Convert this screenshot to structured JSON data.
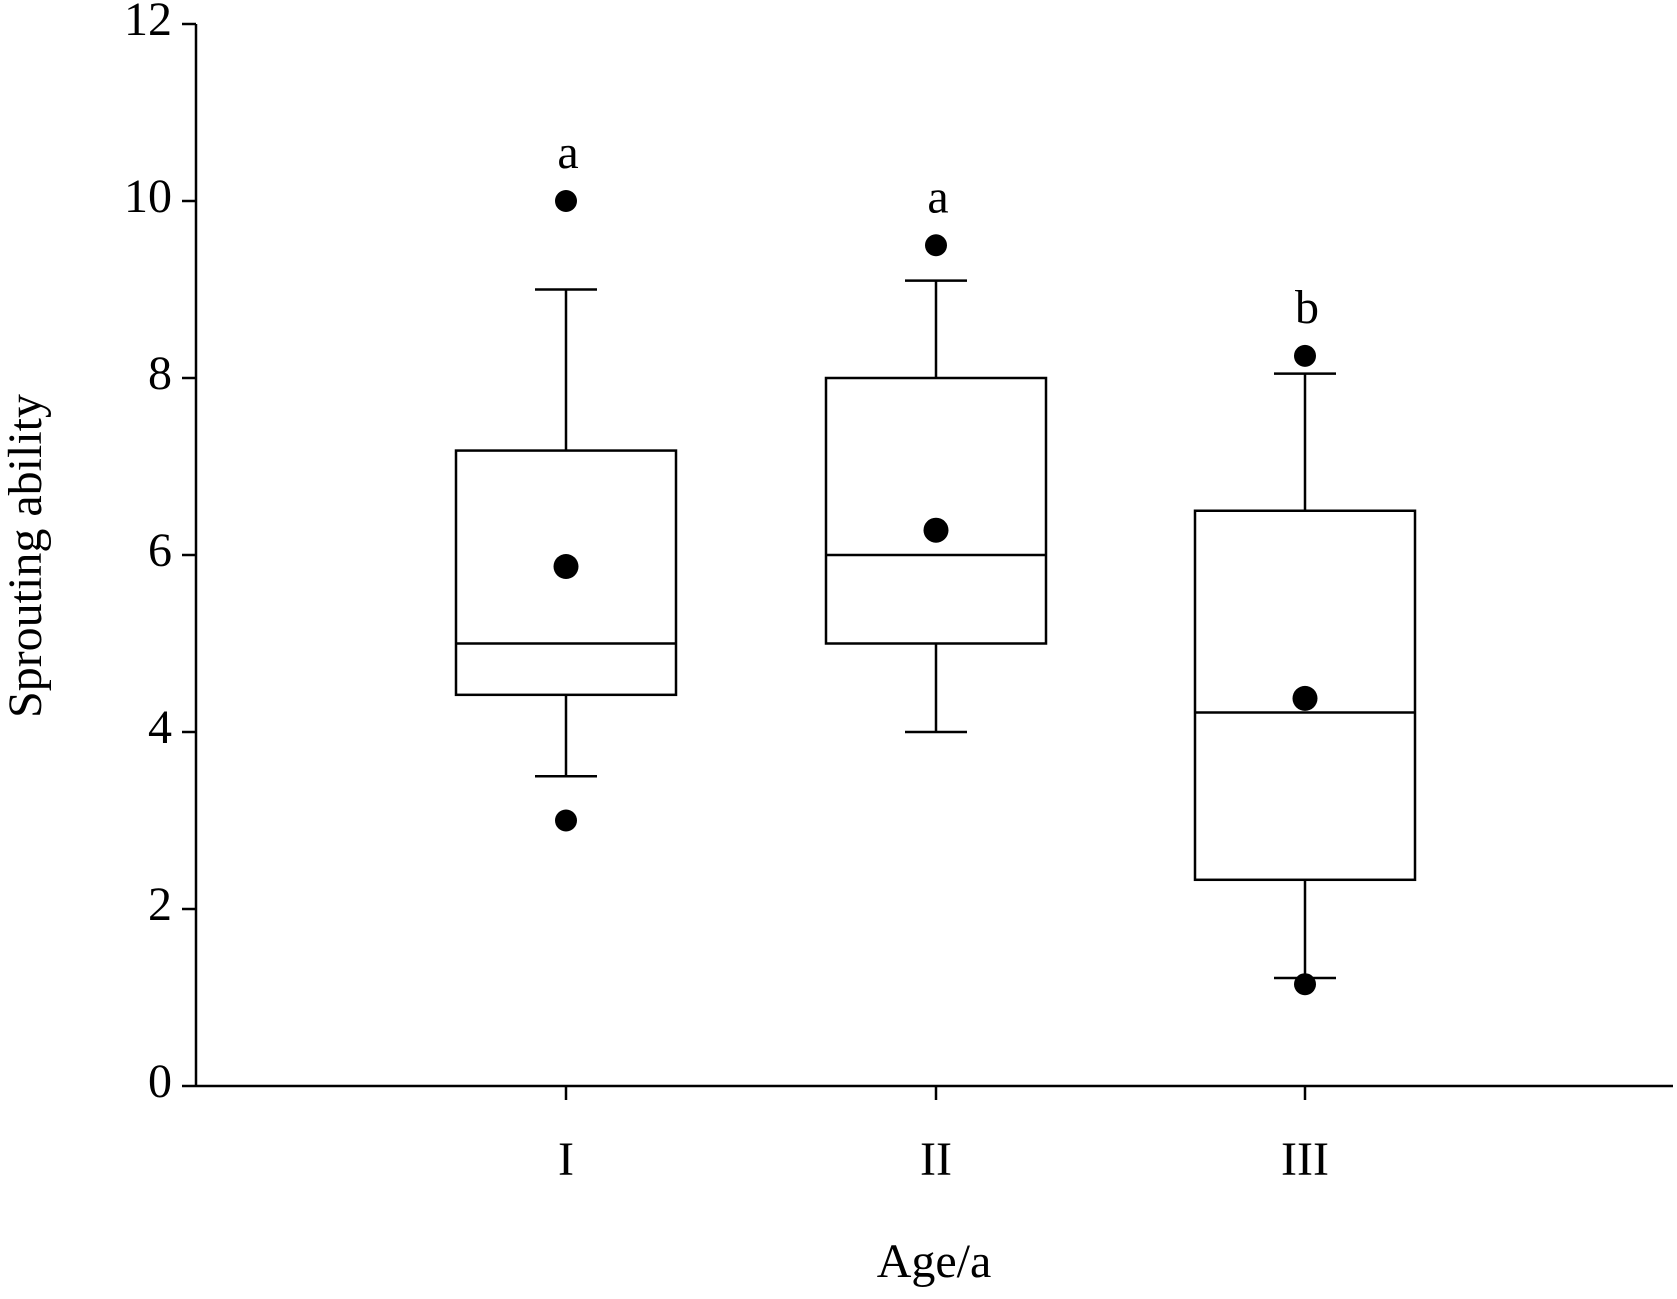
{
  "chart_data": {
    "type": "box",
    "x_label": "Age/a",
    "y_label": "Sprouting ability",
    "categories": [
      "I",
      "II",
      "III"
    ],
    "boxes": [
      {
        "whisker_low": 3.5,
        "q1": 4.42,
        "median": 5.0,
        "q3": 7.18,
        "whisker_high": 9.0,
        "mean": 5.87,
        "outliers": [
          3.0,
          10.0
        ],
        "letter": "a"
      },
      {
        "whisker_low": 4.0,
        "q1": 5.0,
        "median": 6.0,
        "q3": 8.0,
        "whisker_high": 9.1,
        "mean": 6.28,
        "outliers": [
          9.5
        ],
        "letter": "a"
      },
      {
        "whisker_low": 1.22,
        "q1": 2.33,
        "median": 4.22,
        "q3": 6.5,
        "whisker_high": 8.05,
        "mean": 4.38,
        "outliers": [
          8.25,
          1.15
        ],
        "letter": "b"
      }
    ],
    "color": "#000000",
    "ylim": [
      0,
      12
    ],
    "yticks": [
      0,
      2,
      4,
      6,
      8,
      10,
      12
    ],
    "grid": false
  }
}
